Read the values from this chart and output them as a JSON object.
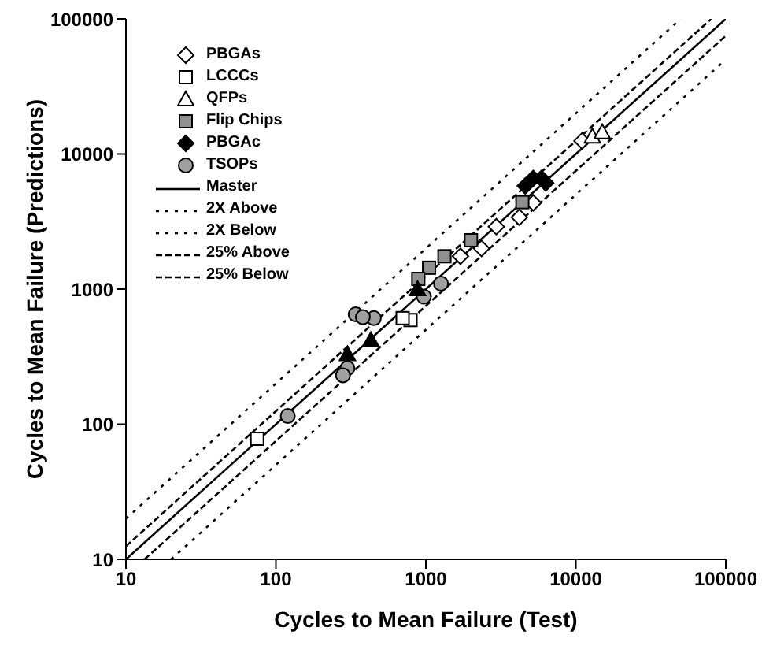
{
  "chart_data": {
    "type": "scatter",
    "xlabel": "Cycles to Mean Failure (Test)",
    "ylabel": "Cycles to Mean Failure (Predictions)",
    "log": "xy",
    "xlim": [
      10,
      100000
    ],
    "ylim": [
      10,
      100000
    ],
    "xticks": [
      10,
      100,
      1000,
      10000,
      100000
    ],
    "yticks": [
      10,
      100,
      1000,
      10000,
      100000
    ],
    "legend": "top left",
    "series": [
      {
        "name": "PBGAs",
        "color": "#ffffff",
        "marker": "diamond",
        "x": [
          5200,
          4200,
          2950,
          2350,
          1700,
          11000
        ],
        "values": [
          4350,
          3400,
          2900,
          2000,
          1750,
          12500
        ]
      },
      {
        "name": "LCCCs",
        "color": "#ffffff",
        "marker": "square",
        "x": [
          75,
          790,
          700
        ],
        "values": [
          78,
          590,
          610
        ]
      },
      {
        "name": "QFPs",
        "color": "#ffffff",
        "marker": "triangle",
        "x": [
          12900,
          15000
        ],
        "values": [
          13500,
          14500
        ]
      },
      {
        "name": "Flip Chips",
        "color": "#909090",
        "marker": "square",
        "x": [
          4400,
          2000,
          1330,
          1050,
          890
        ],
        "values": [
          4400,
          2300,
          1750,
          1440,
          1190
        ]
      },
      {
        "name": "PBGAc",
        "color": "#000000",
        "marker": "diamond",
        "x": [
          4600,
          5200,
          5900,
          6300
        ],
        "values": [
          5800,
          6600,
          6600,
          6100
        ]
      },
      {
        "name": "TSOPs",
        "color": "#a0a0a0",
        "marker": "circle",
        "x": [
          120,
          340,
          450,
          1260,
          970,
          300,
          280,
          380
        ],
        "values": [
          115,
          650,
          610,
          1100,
          880,
          260,
          230,
          620
        ]
      },
      {
        "color": "#000000",
        "marker": "triangle",
        "x": [
          300,
          430,
          880
        ],
        "values": [
          330,
          420,
          1000
        ]
      },
      {
        "name": "Master",
        "type": "line",
        "color": "#000000",
        "line_style": "solid",
        "x": [
          10,
          100000
        ],
        "values": [
          10,
          100000
        ]
      },
      {
        "name": "2X Above",
        "type": "line",
        "color": "#000000",
        "line_style": "dotted",
        "x": [
          10,
          50000
        ],
        "values": [
          20,
          100000
        ]
      },
      {
        "name": "2X Below",
        "type": "line",
        "color": "#000000",
        "line_style": "dotted",
        "x": [
          20,
          100000
        ],
        "values": [
          10,
          50000
        ]
      },
      {
        "name": "25% Above",
        "type": "line",
        "color": "#000000",
        "line_style": "dashed",
        "x": [
          10,
          80000
        ],
        "values": [
          12.5,
          100000
        ]
      },
      {
        "name": "25% Below",
        "type": "line",
        "color": "#000000",
        "line_style": "dashed",
        "x": [
          13.3,
          100000
        ],
        "values": [
          10,
          75000
        ]
      }
    ]
  }
}
